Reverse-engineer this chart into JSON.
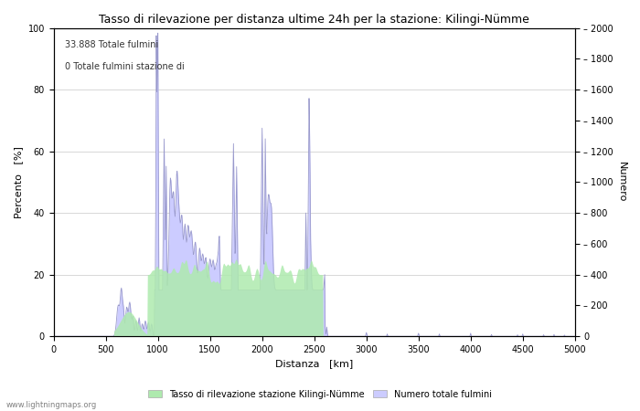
{
  "title": "Tasso di rilevazione per distanza ultime 24h per la stazione: Kilingi-Nümme",
  "xlabel": "Distanza   [km]",
  "ylabel_left": "Percento   [%]",
  "ylabel_right": "Numero",
  "annotation_line1": "33.888 Totale fulmini",
  "annotation_line2": "0 Totale fulmini stazione di",
  "xlim": [
    0,
    5000
  ],
  "ylim_left": [
    0,
    100
  ],
  "ylim_right": [
    0,
    2000
  ],
  "xticks": [
    0,
    500,
    1000,
    1500,
    2000,
    2500,
    3000,
    3500,
    4000,
    4500,
    5000
  ],
  "yticks_left": [
    0,
    20,
    40,
    60,
    80,
    100
  ],
  "yticks_right": [
    0,
    200,
    400,
    600,
    800,
    1000,
    1200,
    1400,
    1600,
    1800,
    2000
  ],
  "legend_label_green": "Tasso di rilevazione stazione Kilingi-Nümme",
  "legend_label_blue": "Numero totale fulmini",
  "fill_green_color": "#aeeaae",
  "fill_blue_color": "#ccccff",
  "line_color": "#9999cc",
  "watermark": "www.lightningmaps.org",
  "bg_color": "#ffffff",
  "grid_color": "#c8c8c8"
}
